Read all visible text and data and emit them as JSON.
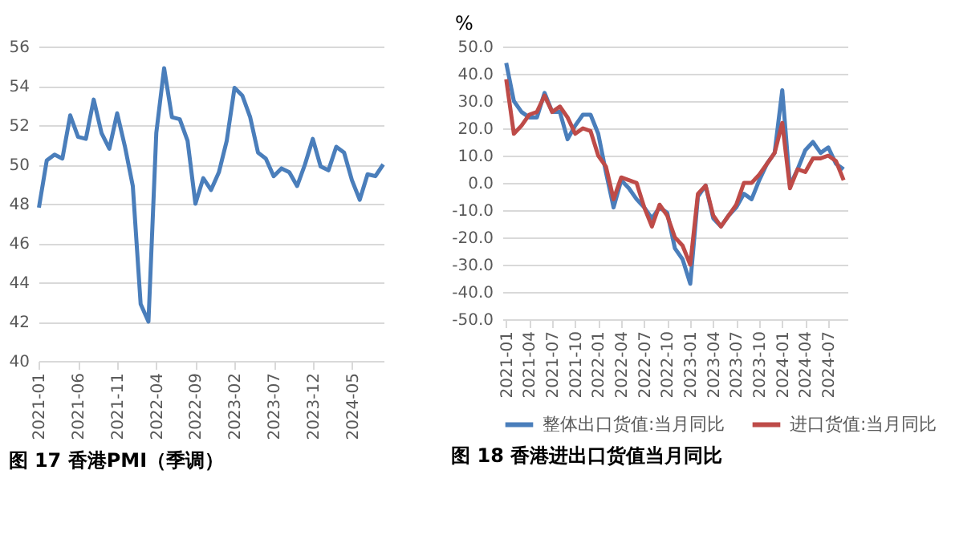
{
  "chart_data": [
    {
      "type": "line",
      "title": "图 17  香港PMI（季调）",
      "categories": [
        "2021-01",
        null,
        null,
        null,
        null,
        "2021-06",
        null,
        null,
        null,
        null,
        "2021-11",
        null,
        null,
        null,
        null,
        "2022-04",
        null,
        null,
        null,
        null,
        "2022-09",
        null,
        null,
        null,
        null,
        "2023-02",
        null,
        null,
        null,
        null,
        "2023-07",
        null,
        null,
        null,
        null,
        "2023-12",
        null,
        null,
        null,
        null,
        "2024-05",
        null,
        null,
        null,
        null
      ],
      "values": [
        47.8,
        50.2,
        50.5,
        50.3,
        52.5,
        51.4,
        51.3,
        53.3,
        51.6,
        50.8,
        52.6,
        50.9,
        48.9,
        42.9,
        42.0,
        51.6,
        54.9,
        52.4,
        52.3,
        51.2,
        48.0,
        49.3,
        48.7,
        49.6,
        51.2,
        53.9,
        53.5,
        52.4,
        50.6,
        50.3,
        49.4,
        49.8,
        49.6,
        48.9,
        50.0,
        51.3,
        49.9,
        49.7,
        50.9,
        50.6,
        49.2,
        48.2,
        49.5,
        49.4,
        50.0
      ],
      "color": "#4a7ebb",
      "ylim": [
        40,
        56
      ],
      "yticks": [
        40,
        42,
        44,
        46,
        48,
        50,
        52,
        54,
        56
      ],
      "grid": "y"
    },
    {
      "type": "line",
      "title": "图 18  香港进出口货值当月同比",
      "ylabel": "%",
      "categories": [
        "2021-01",
        null,
        null,
        "2021-04",
        null,
        null,
        "2021-07",
        null,
        null,
        "2021-10",
        null,
        null,
        "2022-01",
        null,
        null,
        "2022-04",
        null,
        null,
        "2022-07",
        null,
        null,
        "2022-10",
        null,
        null,
        "2023-01",
        null,
        null,
        "2023-04",
        null,
        null,
        "2023-07",
        null,
        null,
        "2023-10",
        null,
        null,
        "2024-01",
        null,
        null,
        "2024-04",
        null,
        null,
        "2024-07",
        null,
        null
      ],
      "series": [
        {
          "name": "整体出口货值:当月同比",
          "color": "#4a7ebb",
          "values": [
            44,
            30,
            26,
            24,
            24,
            33,
            26,
            26,
            16,
            21,
            25,
            25,
            18,
            4,
            -9,
            1,
            -2,
            -6,
            -9,
            -13,
            -9,
            -11,
            -24,
            -28,
            -37,
            -5,
            -1,
            -13,
            -16,
            -12,
            -9,
            -4,
            -6,
            1,
            7,
            11,
            34,
            -1,
            5,
            12,
            15,
            11,
            13,
            7,
            5
          ]
        },
        {
          "name": "进口货值:当月同比",
          "color": "#be4b48",
          "values": [
            38,
            18,
            21,
            25,
            26,
            32,
            26,
            28,
            24,
            18,
            20,
            19,
            10,
            6,
            -6,
            2,
            1,
            0,
            -9,
            -16,
            -8,
            -12,
            -20,
            -23,
            -30,
            -4,
            -1,
            -12,
            -16,
            -12,
            -8,
            0,
            0,
            3,
            7,
            11,
            22,
            -2,
            5,
            4,
            9,
            9,
            10,
            8,
            1
          ]
        }
      ],
      "ylim": [
        -50,
        50
      ],
      "yticks": [
        {
          "value": -50,
          "label": "-50.0"
        },
        {
          "value": -40,
          "label": "-40.0"
        },
        {
          "value": -30,
          "label": "-30.0"
        },
        {
          "value": -20,
          "label": "-20.0"
        },
        {
          "value": -10,
          "label": "-10.0"
        },
        {
          "value": 0,
          "label": "0.0"
        },
        {
          "value": 10,
          "label": "10.0"
        },
        {
          "value": 20,
          "label": "20.0"
        },
        {
          "value": 30,
          "label": "30.0"
        },
        {
          "value": 40,
          "label": "40.0"
        },
        {
          "value": 50,
          "label": "50.0"
        }
      ],
      "grid": "y",
      "legend": "bottom"
    }
  ]
}
